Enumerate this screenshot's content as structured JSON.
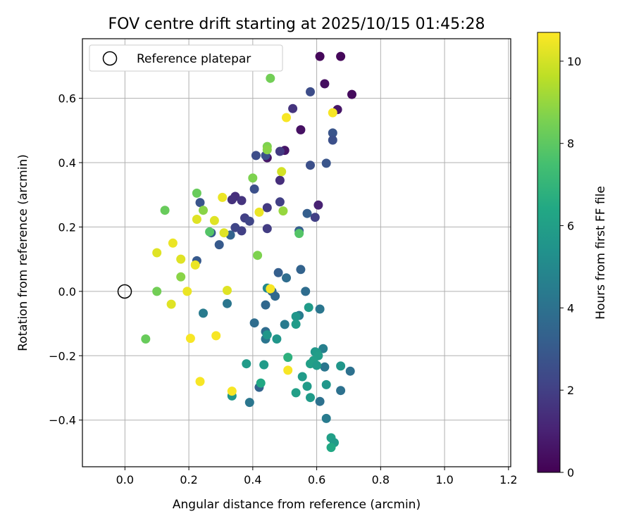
{
  "chart_data": {
    "type": "scatter",
    "title": "FOV centre drift starting at 2025/10/15 01:45:28",
    "xlabel": "Angular distance from reference (arcmin)",
    "ylabel": "Rotation from reference (arcmin)",
    "xlim": [
      -0.133,
      1.207
    ],
    "ylim": [
      -0.545,
      0.785
    ],
    "xticks": [
      0.0,
      0.2,
      0.4,
      0.6,
      0.8,
      1.0,
      1.2
    ],
    "xtick_labels": [
      "0.0",
      "0.2",
      "0.4",
      "0.6",
      "0.8",
      "1.0",
      "1.2"
    ],
    "yticks": [
      -0.4,
      -0.2,
      0.0,
      0.2,
      0.4,
      0.6
    ],
    "ytick_labels": [
      "−0.4",
      "−0.2",
      "0.0",
      "0.2",
      "0.4",
      "0.6"
    ],
    "grid": true,
    "colormap": "viridis",
    "colorbar": {
      "label": "Hours from first FF file",
      "range": [
        0,
        10.7
      ],
      "ticks": [
        0,
        2,
        4,
        6,
        8,
        10
      ],
      "tick_labels": [
        "0",
        "2",
        "4",
        "6",
        "8",
        "10"
      ]
    },
    "legend": {
      "position": "top-left",
      "entries": [
        {
          "label": "Reference platepar",
          "marker": "open-circle"
        }
      ]
    },
    "reference_point": {
      "x": 0.0,
      "y": 0.0
    },
    "points": [
      {
        "x": 0.61,
        "y": 0.73,
        "c": 0.2
      },
      {
        "x": 0.675,
        "y": 0.73,
        "c": 0.2
      },
      {
        "x": 0.625,
        "y": 0.645,
        "c": 0.4
      },
      {
        "x": 0.71,
        "y": 0.612,
        "c": 0.3
      },
      {
        "x": 0.665,
        "y": 0.565,
        "c": 0.6
      },
      {
        "x": 0.55,
        "y": 0.502,
        "c": 0.5
      },
      {
        "x": 0.5,
        "y": 0.438,
        "c": 0.6
      },
      {
        "x": 0.445,
        "y": 0.415,
        "c": 0.6
      },
      {
        "x": 0.605,
        "y": 0.268,
        "c": 1.0
      },
      {
        "x": 0.525,
        "y": 0.568,
        "c": 1.6
      },
      {
        "x": 0.485,
        "y": 0.435,
        "c": 1.8
      },
      {
        "x": 0.485,
        "y": 0.345,
        "c": 1.4
      },
      {
        "x": 0.345,
        "y": 0.295,
        "c": 1.4
      },
      {
        "x": 0.365,
        "y": 0.282,
        "c": 1.6
      },
      {
        "x": 0.335,
        "y": 0.285,
        "c": 1.5
      },
      {
        "x": 0.445,
        "y": 0.26,
        "c": 1.8
      },
      {
        "x": 0.485,
        "y": 0.278,
        "c": 2.0
      },
      {
        "x": 0.595,
        "y": 0.23,
        "c": 2.0
      },
      {
        "x": 0.445,
        "y": 0.195,
        "c": 1.9
      },
      {
        "x": 0.375,
        "y": 0.228,
        "c": 2.0
      },
      {
        "x": 0.365,
        "y": 0.188,
        "c": 2.0
      },
      {
        "x": 0.345,
        "y": 0.198,
        "c": 2.2
      },
      {
        "x": 0.39,
        "y": 0.218,
        "c": 2.2
      },
      {
        "x": 0.58,
        "y": 0.62,
        "c": 2.5
      },
      {
        "x": 0.65,
        "y": 0.492,
        "c": 2.8
      },
      {
        "x": 0.65,
        "y": 0.47,
        "c": 2.6
      },
      {
        "x": 0.63,
        "y": 0.398,
        "c": 2.8
      },
      {
        "x": 0.58,
        "y": 0.392,
        "c": 2.6
      },
      {
        "x": 0.41,
        "y": 0.422,
        "c": 2.5
      },
      {
        "x": 0.44,
        "y": 0.422,
        "c": 2.7
      },
      {
        "x": 0.405,
        "y": 0.318,
        "c": 2.6
      },
      {
        "x": 0.235,
        "y": 0.276,
        "c": 2.8
      },
      {
        "x": 0.57,
        "y": 0.242,
        "c": 3.2
      },
      {
        "x": 0.545,
        "y": 0.188,
        "c": 3.2
      },
      {
        "x": 0.27,
        "y": 0.182,
        "c": 3.0
      },
      {
        "x": 0.295,
        "y": 0.145,
        "c": 3.0
      },
      {
        "x": 0.33,
        "y": 0.175,
        "c": 3.4
      },
      {
        "x": 0.225,
        "y": 0.095,
        "c": 3.0
      },
      {
        "x": 0.48,
        "y": 0.058,
        "c": 3.2
      },
      {
        "x": 0.55,
        "y": 0.068,
        "c": 3.4
      },
      {
        "x": 0.505,
        "y": 0.042,
        "c": 3.8
      },
      {
        "x": 0.46,
        "y": 0.0,
        "c": 3.6
      },
      {
        "x": 0.47,
        "y": -0.015,
        "c": 3.6
      },
      {
        "x": 0.565,
        "y": 0.0,
        "c": 3.8
      },
      {
        "x": 0.44,
        "y": -0.042,
        "c": 3.6
      },
      {
        "x": 0.32,
        "y": -0.038,
        "c": 4.2
      },
      {
        "x": 0.245,
        "y": -0.068,
        "c": 4.4
      },
      {
        "x": 0.545,
        "y": -0.075,
        "c": 4.4
      },
      {
        "x": 0.61,
        "y": -0.055,
        "c": 4.2
      },
      {
        "x": 0.405,
        "y": -0.098,
        "c": 3.8
      },
      {
        "x": 0.44,
        "y": -0.125,
        "c": 3.8
      },
      {
        "x": 0.44,
        "y": -0.148,
        "c": 4.2
      },
      {
        "x": 0.5,
        "y": -0.103,
        "c": 4.4
      },
      {
        "x": 0.62,
        "y": -0.178,
        "c": 4.6
      },
      {
        "x": 0.42,
        "y": -0.298,
        "c": 3.4
      },
      {
        "x": 0.39,
        "y": -0.345,
        "c": 4.2
      },
      {
        "x": 0.61,
        "y": -0.342,
        "c": 4.0
      },
      {
        "x": 0.675,
        "y": -0.308,
        "c": 4.0
      },
      {
        "x": 0.705,
        "y": -0.248,
        "c": 4.0
      },
      {
        "x": 0.625,
        "y": -0.235,
        "c": 4.2
      },
      {
        "x": 0.63,
        "y": -0.395,
        "c": 4.4
      },
      {
        "x": 0.445,
        "y": 0.01,
        "c": 5.0
      },
      {
        "x": 0.445,
        "y": -0.135,
        "c": 5.6
      },
      {
        "x": 0.475,
        "y": -0.148,
        "c": 5.6
      },
      {
        "x": 0.535,
        "y": -0.078,
        "c": 5.6
      },
      {
        "x": 0.535,
        "y": -0.102,
        "c": 5.8
      },
      {
        "x": 0.575,
        "y": -0.05,
        "c": 5.8
      },
      {
        "x": 0.595,
        "y": -0.188,
        "c": 5.6
      },
      {
        "x": 0.6,
        "y": -0.19,
        "c": 5.8
      },
      {
        "x": 0.605,
        "y": -0.2,
        "c": 5.9
      },
      {
        "x": 0.59,
        "y": -0.215,
        "c": 6.0
      },
      {
        "x": 0.58,
        "y": -0.225,
        "c": 6.0
      },
      {
        "x": 0.6,
        "y": -0.23,
        "c": 5.8
      },
      {
        "x": 0.555,
        "y": -0.265,
        "c": 5.8
      },
      {
        "x": 0.57,
        "y": -0.295,
        "c": 5.8
      },
      {
        "x": 0.535,
        "y": -0.315,
        "c": 6.0
      },
      {
        "x": 0.58,
        "y": -0.33,
        "c": 5.8
      },
      {
        "x": 0.63,
        "y": -0.29,
        "c": 5.6
      },
      {
        "x": 0.675,
        "y": -0.232,
        "c": 5.6
      },
      {
        "x": 0.38,
        "y": -0.225,
        "c": 5.8
      },
      {
        "x": 0.435,
        "y": -0.228,
        "c": 5.8
      },
      {
        "x": 0.425,
        "y": -0.285,
        "c": 6.4
      },
      {
        "x": 0.335,
        "y": -0.325,
        "c": 5.6
      },
      {
        "x": 0.645,
        "y": -0.455,
        "c": 6.0
      },
      {
        "x": 0.655,
        "y": -0.47,
        "c": 5.8
      },
      {
        "x": 0.645,
        "y": -0.485,
        "c": 6.4
      },
      {
        "x": 0.51,
        "y": -0.205,
        "c": 6.8
      },
      {
        "x": 0.545,
        "y": 0.18,
        "c": 7.8
      },
      {
        "x": 0.265,
        "y": 0.185,
        "c": 7.8
      },
      {
        "x": 0.455,
        "y": 0.662,
        "c": 8.4
      },
      {
        "x": 0.445,
        "y": 0.45,
        "c": 8.6
      },
      {
        "x": 0.445,
        "y": 0.44,
        "c": 8.8
      },
      {
        "x": 0.4,
        "y": 0.352,
        "c": 8.6
      },
      {
        "x": 0.225,
        "y": 0.305,
        "c": 8.2
      },
      {
        "x": 0.125,
        "y": 0.252,
        "c": 8.2
      },
      {
        "x": 0.245,
        "y": 0.252,
        "c": 8.8
      },
      {
        "x": 0.495,
        "y": 0.25,
        "c": 9.0
      },
      {
        "x": 0.415,
        "y": 0.112,
        "c": 8.6
      },
      {
        "x": 0.175,
        "y": 0.045,
        "c": 8.8
      },
      {
        "x": 0.1,
        "y": 0.0,
        "c": 8.4
      },
      {
        "x": 0.065,
        "y": -0.148,
        "c": 8.2
      },
      {
        "x": 0.65,
        "y": 0.555,
        "c": 10.6
      },
      {
        "x": 0.505,
        "y": 0.54,
        "c": 10.6
      },
      {
        "x": 0.49,
        "y": 0.372,
        "c": 10.0
      },
      {
        "x": 0.305,
        "y": 0.292,
        "c": 10.4
      },
      {
        "x": 0.42,
        "y": 0.246,
        "c": 10.4
      },
      {
        "x": 0.225,
        "y": 0.224,
        "c": 10.2
      },
      {
        "x": 0.28,
        "y": 0.22,
        "c": 10.2
      },
      {
        "x": 0.31,
        "y": 0.182,
        "c": 10.2
      },
      {
        "x": 0.15,
        "y": 0.15,
        "c": 10.4
      },
      {
        "x": 0.1,
        "y": 0.12,
        "c": 10.2
      },
      {
        "x": 0.175,
        "y": 0.1,
        "c": 10.2
      },
      {
        "x": 0.22,
        "y": 0.082,
        "c": 10.4
      },
      {
        "x": 0.195,
        "y": 0.0,
        "c": 10.4
      },
      {
        "x": 0.32,
        "y": 0.003,
        "c": 10.2
      },
      {
        "x": 0.455,
        "y": 0.008,
        "c": 10.6
      },
      {
        "x": 0.145,
        "y": -0.04,
        "c": 10.2
      },
      {
        "x": 0.285,
        "y": -0.138,
        "c": 10.6
      },
      {
        "x": 0.205,
        "y": -0.146,
        "c": 10.6
      },
      {
        "x": 0.51,
        "y": -0.245,
        "c": 10.6
      },
      {
        "x": 0.235,
        "y": -0.28,
        "c": 10.6
      },
      {
        "x": 0.335,
        "y": -0.31,
        "c": 10.6
      }
    ]
  }
}
